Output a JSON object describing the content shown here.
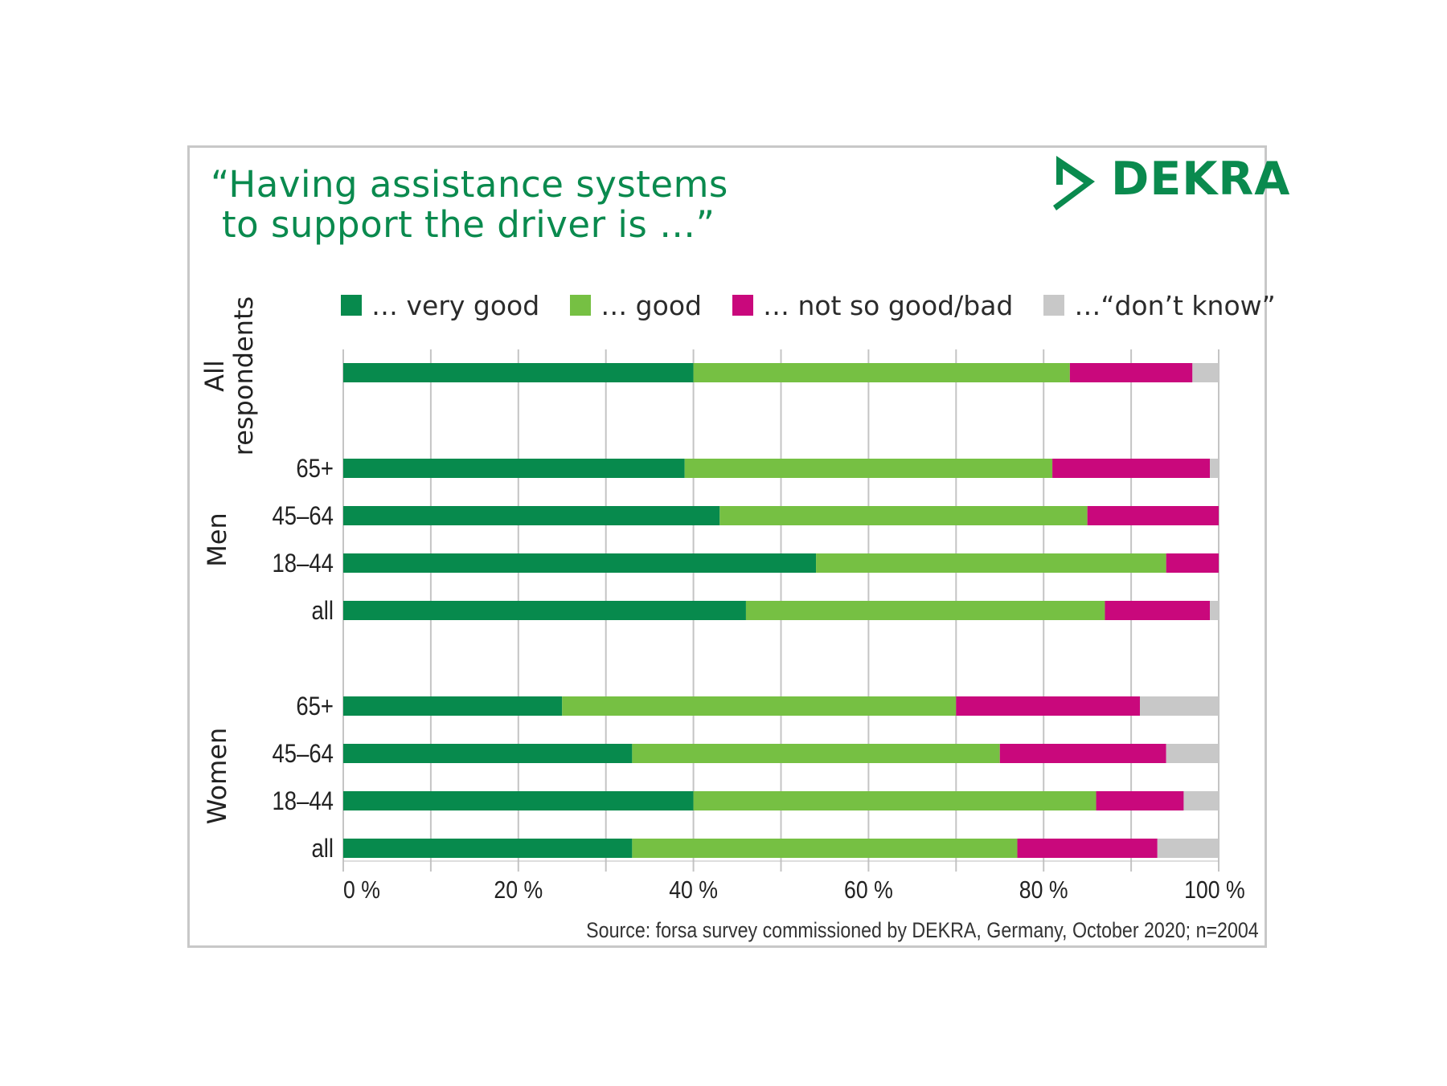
{
  "header": {
    "title_line1": "“Having assistance systems",
    "title_line2": "to support the driver is …”",
    "logo_text": "DEKRA"
  },
  "colors": {
    "very_good": "#078a4d",
    "good": "#76c043",
    "not_so_good": "#c9087c",
    "dont_know": "#c8c8c8",
    "brand": "#0a8a4e",
    "grid": "#c4c4c4"
  },
  "footer": {
    "source": "Source: forsa survey commissioned by DEKRA, Germany, October 2020; n=2004"
  },
  "chart_data": {
    "type": "bar",
    "orientation": "horizontal",
    "stacked": true,
    "legend_position": "top",
    "grid": true,
    "xlim": [
      0,
      100
    ],
    "x_ticks": [
      "0 %",
      "20 %",
      "40 %",
      "60 %",
      "80 %",
      "100 %"
    ],
    "x_tick_values": [
      0,
      20,
      40,
      60,
      80,
      100
    ],
    "series": [
      {
        "name": "… very good",
        "key": "very_good"
      },
      {
        "name": "… good",
        "key": "good"
      },
      {
        "name": "… not so good/bad",
        "key": "not_so_good"
      },
      {
        "name": "…“don’t know”",
        "key": "dont_know"
      }
    ],
    "groups": [
      {
        "name": "All respondents",
        "name_lines": [
          "All",
          "respondents"
        ],
        "rows": [
          {
            "label": "",
            "values": [
              40,
              43,
              14,
              3
            ]
          }
        ]
      },
      {
        "name": "Men",
        "name_lines": [
          "Men"
        ],
        "rows": [
          {
            "label": "65+",
            "values": [
              39,
              42,
              18,
              1
            ]
          },
          {
            "label": "45–64",
            "values": [
              43,
              42,
              15,
              0
            ]
          },
          {
            "label": "18–44",
            "values": [
              54,
              40,
              6,
              0
            ]
          },
          {
            "label": "all",
            "values": [
              46,
              41,
              12,
              1
            ]
          }
        ]
      },
      {
        "name": "Women",
        "name_lines": [
          "Women"
        ],
        "rows": [
          {
            "label": "65+",
            "values": [
              25,
              45,
              21,
              9
            ]
          },
          {
            "label": "45–64",
            "values": [
              33,
              42,
              19,
              6
            ]
          },
          {
            "label": "18–44",
            "values": [
              40,
              46,
              10,
              4
            ]
          },
          {
            "label": "all",
            "values": [
              33,
              44,
              16,
              7
            ]
          }
        ]
      }
    ]
  }
}
